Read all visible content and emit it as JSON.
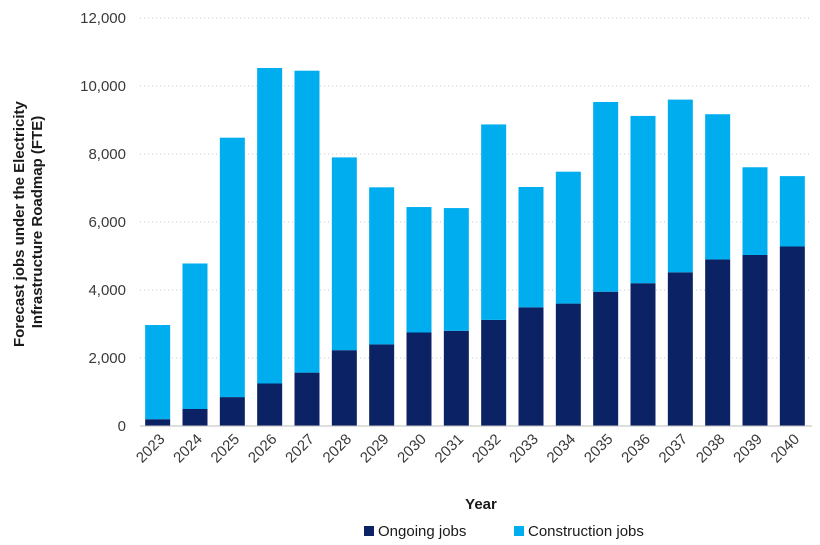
{
  "chart_data": {
    "type": "bar",
    "stacked": true,
    "title": "",
    "xlabel": "Year",
    "ylabel": "Forecast jobs under the Electricity Infrastructure Roadmap (FTE)",
    "ylabel_lines": [
      "Forecast jobs under the Electricity",
      "Infrastructure Roadmap (FTE)"
    ],
    "ylim": [
      0,
      12000
    ],
    "yticks": [
      0,
      2000,
      4000,
      6000,
      8000,
      10000,
      12000
    ],
    "ytick_labels": [
      "0",
      "2,000",
      "4,000",
      "6,000",
      "8,000",
      "10,000",
      "12,000"
    ],
    "grid": "horizontal dotted",
    "legend_position": "bottom",
    "categories": [
      "2023",
      "2024",
      "2025",
      "2026",
      "2027",
      "2028",
      "2029",
      "2030",
      "2031",
      "2032",
      "2033",
      "2034",
      "2035",
      "2036",
      "2037",
      "2038",
      "2039",
      "2040"
    ],
    "series": [
      {
        "name": "Ongoing jobs",
        "color": "#0b2265",
        "values": [
          200,
          500,
          850,
          1250,
          1570,
          2230,
          2400,
          2750,
          2800,
          3120,
          3490,
          3600,
          3950,
          4200,
          4520,
          4900,
          5030,
          5280
        ]
      },
      {
        "name": "Construction jobs",
        "color": "#00aeef",
        "values": [
          2770,
          4280,
          7630,
          9280,
          8880,
          5670,
          4620,
          3690,
          3610,
          5750,
          3540,
          3880,
          5580,
          4920,
          5080,
          4270,
          2580,
          2070
        ]
      }
    ]
  }
}
